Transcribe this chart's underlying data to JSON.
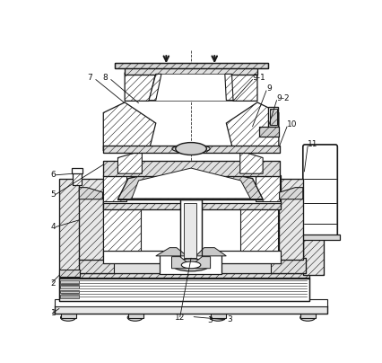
{
  "fig_width": 4.27,
  "fig_height": 4.04,
  "dpi": 100,
  "bg_color": "#ffffff",
  "lc": "#1a1a1a",
  "hatch_lw": 0.4,
  "annotations": [
    [
      "1",
      30,
      385,
      10,
      385
    ],
    [
      "2",
      30,
      330,
      10,
      340
    ],
    [
      "3",
      250,
      400,
      250,
      400
    ],
    [
      "4",
      30,
      250,
      10,
      260
    ],
    [
      "5",
      30,
      218,
      10,
      218
    ],
    [
      "6",
      30,
      192,
      10,
      192
    ],
    [
      "7",
      95,
      52,
      68,
      52
    ],
    [
      "8",
      113,
      52,
      80,
      52
    ],
    [
      "9-1",
      303,
      52,
      303,
      52
    ],
    [
      "9",
      310,
      68,
      310,
      68
    ],
    [
      "9-2",
      318,
      82,
      318,
      82
    ],
    [
      "10",
      320,
      120,
      320,
      120
    ],
    [
      "11",
      378,
      150,
      378,
      150
    ],
    [
      "12",
      185,
      400,
      185,
      400
    ]
  ]
}
